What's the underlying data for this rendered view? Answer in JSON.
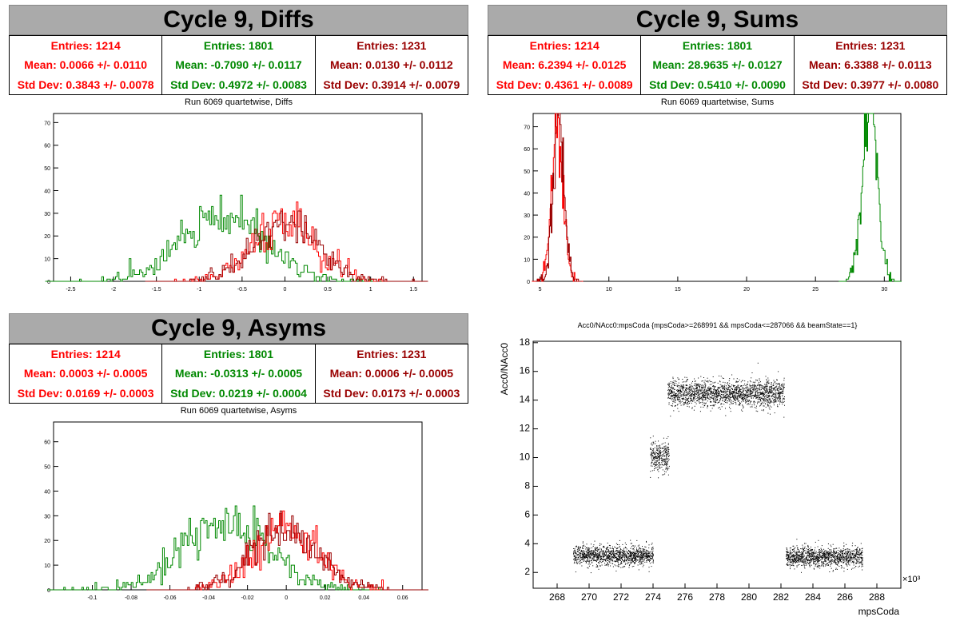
{
  "colors": {
    "red": "#ff0000",
    "green": "#008800",
    "darkred": "#990000",
    "black": "#000000"
  },
  "panels": [
    {
      "title": "Cycle 9, Diffs",
      "subtitle": "Run 6069 quartetwise, Diffs",
      "stats": [
        {
          "entries": "Entries: 1214",
          "mean": "Mean: 0.0066 +/- 0.0110",
          "std": "Std Dev: 0.3843 +/- 0.0078",
          "color": "#ff0000"
        },
        {
          "entries": "Entries: 1801",
          "mean": "Mean: -0.7090 +/- 0.0117",
          "std": "Std Dev: 0.4972 +/- 0.0083",
          "color": "#008800"
        },
        {
          "entries": "Entries: 1231",
          "mean": "Mean: 0.0130 +/- 0.0112",
          "std": "Std Dev: 0.3914 +/- 0.0079",
          "color": "#990000"
        }
      ]
    },
    {
      "title": "Cycle 9, Sums",
      "subtitle": "Run 6069 quartetwise, Sums",
      "stats": [
        {
          "entries": "Entries: 1214",
          "mean": "Mean: 6.2394 +/- 0.0125",
          "std": "Std Dev: 0.4361 +/- 0.0089",
          "color": "#ff0000"
        },
        {
          "entries": "Entries: 1801",
          "mean": "Mean: 28.9635 +/- 0.0127",
          "std": "Std Dev: 0.5410 +/- 0.0090",
          "color": "#008800"
        },
        {
          "entries": "Entries: 1231",
          "mean": "Mean: 6.3388 +/- 0.0113",
          "std": "Std Dev: 0.3977 +/- 0.0080",
          "color": "#990000"
        }
      ]
    },
    {
      "title": "Cycle 9, Asyms",
      "subtitle": "Run 6069 quartetwise, Asyms",
      "stats": [
        {
          "entries": "Entries: 1214",
          "mean": "Mean: 0.0003 +/- 0.0005",
          "std": "Std Dev: 0.0169 +/- 0.0003",
          "color": "#ff0000"
        },
        {
          "entries": "Entries: 1801",
          "mean": "Mean: -0.0313 +/- 0.0005",
          "std": "Std Dev: 0.0219 +/- 0.0004",
          "color": "#008800"
        },
        {
          "entries": "Entries: 1231",
          "mean": "Mean: 0.0006 +/- 0.0005",
          "std": "Std Dev: 0.0173 +/- 0.0003",
          "color": "#990000"
        }
      ]
    }
  ],
  "scatter": {
    "title": "Acc0/NAcc0:mpsCoda {mpsCoda>=268991 && mpsCoda<=287066 && beamState==1}",
    "xlabel": "mpsCoda",
    "ylabel": "Acc0/NAcc0",
    "exponent": "×10³"
  },
  "chart_data": [
    {
      "type": "bar",
      "title": "Run 6069 quartetwise, Diffs",
      "xlim": [
        -2.7,
        1.6
      ],
      "ylim": [
        0,
        74
      ],
      "xticks": [
        -2.5,
        -2,
        -1.5,
        -1,
        -0.5,
        0,
        0.5,
        1,
        1.5
      ],
      "yticks": [
        0,
        10,
        20,
        30,
        40,
        50,
        60,
        70
      ],
      "series": [
        {
          "color": "#008800",
          "mean": -0.709,
          "std": 0.4972,
          "n": 1801,
          "binwidth": 0.02
        },
        {
          "color": "#ff0000",
          "mean": 0.0066,
          "std": 0.3843,
          "n": 1214,
          "binwidth": 0.02
        },
        {
          "color": "#990000",
          "mean": 0.013,
          "std": 0.3914,
          "n": 1231,
          "binwidth": 0.02
        }
      ]
    },
    {
      "type": "bar",
      "title": "Run 6069 quartetwise, Sums",
      "xlim": [
        4.5,
        31.2
      ],
      "ylim": [
        0,
        76
      ],
      "xticks": [
        5,
        10,
        15,
        20,
        25,
        30
      ],
      "yticks": [
        0,
        10,
        20,
        30,
        40,
        50,
        60,
        70
      ],
      "series": [
        {
          "color": "#008800",
          "mean": 28.9635,
          "std": 0.541,
          "n": 1801,
          "binwidth": 0.06
        },
        {
          "color": "#ff0000",
          "mean": 6.2394,
          "std": 0.4361,
          "n": 1214,
          "binwidth": 0.06
        },
        {
          "color": "#990000",
          "mean": 6.3388,
          "std": 0.3977,
          "n": 1231,
          "binwidth": 0.06
        }
      ]
    },
    {
      "type": "bar",
      "title": "Run 6069 quartetwise, Asyms",
      "xlim": [
        -0.12,
        0.07
      ],
      "ylim": [
        0,
        68
      ],
      "xticks": [
        -0.1,
        -0.08,
        -0.06,
        -0.04,
        -0.02,
        0,
        0.02,
        0.04,
        0.06
      ],
      "yticks": [
        0,
        10,
        20,
        30,
        40,
        50,
        60
      ],
      "series": [
        {
          "color": "#008800",
          "mean": -0.0313,
          "std": 0.0219,
          "n": 1801,
          "binwidth": 0.00085
        },
        {
          "color": "#ff0000",
          "mean": 0.0003,
          "std": 0.0169,
          "n": 1214,
          "binwidth": 0.00085
        },
        {
          "color": "#990000",
          "mean": 0.0006,
          "std": 0.0173,
          "n": 1231,
          "binwidth": 0.00085
        }
      ]
    },
    {
      "type": "scatter",
      "title": "Acc0/NAcc0:mpsCoda {mpsCoda>=268991 && mpsCoda<=287066 && beamState==1}",
      "xlabel": "mpsCoda",
      "ylabel": "Acc0/NAcc0",
      "xlim": [
        266.5,
        289.5
      ],
      "ylim": [
        0.9,
        18.1
      ],
      "xticks": [
        268,
        270,
        272,
        274,
        276,
        278,
        280,
        282,
        284,
        286,
        288
      ],
      "yticks": [
        2,
        4,
        6,
        8,
        10,
        12,
        14,
        16,
        18
      ],
      "clusters": [
        {
          "x": [
            269,
            274
          ],
          "y": [
            3.2,
            0.35
          ]
        },
        {
          "x": [
            273.8,
            275
          ],
          "y": [
            10.1,
            0.55
          ]
        },
        {
          "x": [
            274.9,
            282.2
          ],
          "y": [
            14.5,
            0.45
          ]
        },
        {
          "x": [
            282.3,
            287.1
          ],
          "y": [
            3.1,
            0.35
          ]
        }
      ]
    }
  ]
}
